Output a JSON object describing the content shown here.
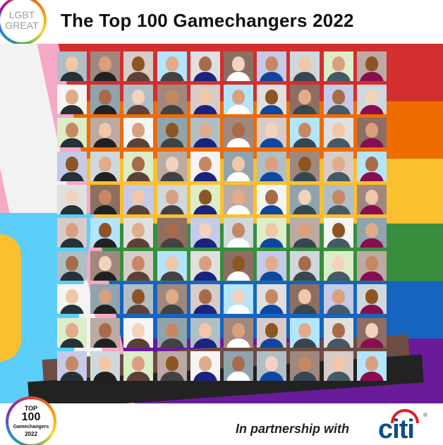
{
  "header": {
    "logo": {
      "line1": "LGBT",
      "line2": "GREAT"
    },
    "title": "The Top 100 Gamechangers 2022"
  },
  "grid": {
    "rows": 10,
    "cols": 10,
    "count": 100
  },
  "footer": {
    "badge": {
      "top": "TOP",
      "number": "100",
      "label": "Gamechangers",
      "year": "2022"
    },
    "partnership_text": "In partnership with",
    "partner_logo": "citi",
    "partner_logo_mark": "®"
  },
  "colors": {
    "title": "#111111",
    "citi_blue": "#0f4c8a",
    "citi_red": "#e31b23",
    "pride_red": "#d32f2f",
    "pride_orange": "#ef6c00",
    "pride_yellow": "#fbc02d",
    "pride_green": "#388e3c",
    "pride_blue": "#1565c0",
    "pride_purple": "#6a1b9a"
  }
}
